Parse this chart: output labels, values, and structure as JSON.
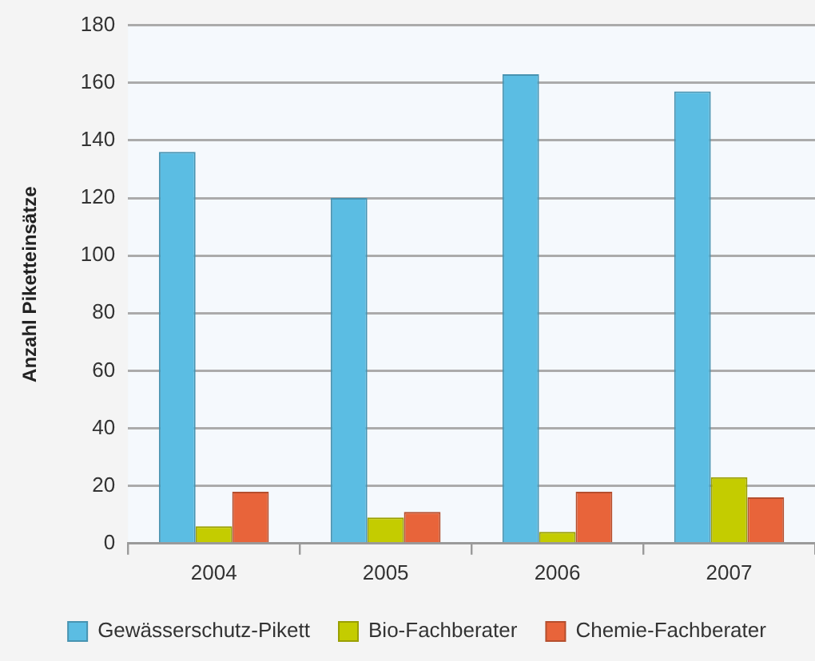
{
  "chart_data": {
    "type": "bar",
    "ylabel": "Anzahl Piketteinsätze",
    "categories": [
      "2004",
      "2005",
      "2006",
      "2007"
    ],
    "series": [
      {
        "name": "Gewässerschutz-Pikett",
        "color": "#5bbde3",
        "values": [
          136,
          120,
          163,
          157
        ]
      },
      {
        "name": "Bio-Fachberater",
        "color": "#c4cc00",
        "values": [
          6,
          9,
          4,
          23
        ]
      },
      {
        "name": "Chemie-Fachberater",
        "color": "#e8643a",
        "values": [
          18,
          11,
          18,
          16
        ]
      }
    ],
    "ylim": [
      0,
      180
    ],
    "yticks": [
      0,
      20,
      40,
      60,
      80,
      100,
      120,
      140,
      160,
      180
    ],
    "grid": "y",
    "legend": "bottom"
  }
}
